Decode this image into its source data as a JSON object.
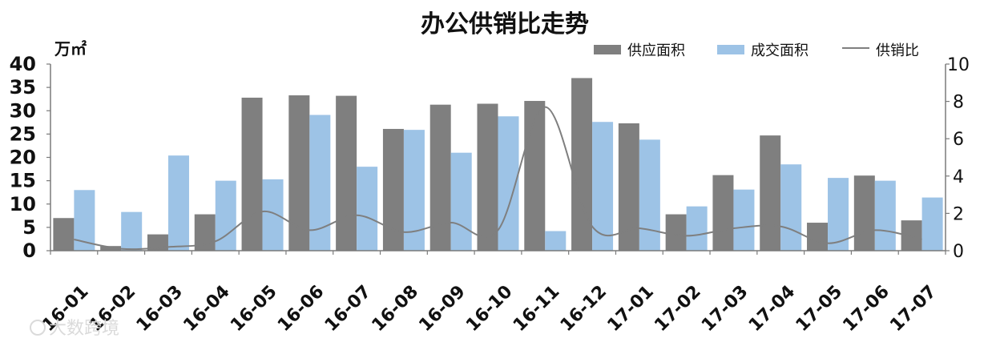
{
  "chart_data": {
    "type": "bar",
    "title": "办公供销比走势",
    "ylabel": "万㎡",
    "ylim": [
      0,
      40
    ],
    "y_ticks": [
      "0",
      "5",
      "10",
      "15",
      "20",
      "25",
      "30",
      "35",
      "40"
    ],
    "y2lim": [
      0,
      10
    ],
    "y2_ticks": [
      "0",
      "2",
      "4",
      "6",
      "8",
      "10"
    ],
    "categories": [
      "16-01",
      "16-02",
      "16-03",
      "16-04",
      "16-05",
      "16-06",
      "16-07",
      "16-08",
      "16-09",
      "16-10",
      "16-11",
      "16-12",
      "17-01",
      "17-02",
      "17-03",
      "17-04",
      "17-05",
      "17-06",
      "17-07"
    ],
    "series": [
      {
        "name": "供应面积",
        "type": "bar",
        "axis": "left",
        "color": "#7f7f7f",
        "values": [
          7.0,
          1.0,
          3.5,
          7.8,
          32.8,
          33.3,
          33.2,
          26.1,
          31.3,
          31.5,
          32.1,
          37.0,
          27.3,
          7.8,
          16.2,
          24.7,
          6.0,
          16.1,
          6.5
        ]
      },
      {
        "name": "成交面积",
        "type": "bar",
        "axis": "left",
        "color": "#9dc3e6",
        "values": [
          13.0,
          8.3,
          20.4,
          15.0,
          15.3,
          29.1,
          18.0,
          25.9,
          21.0,
          28.8,
          4.2,
          27.6,
          23.8,
          9.5,
          13.1,
          18.5,
          15.6,
          15.0,
          11.4
        ]
      },
      {
        "name": "供销比",
        "type": "line",
        "axis": "right",
        "color": "#7f7f7f",
        "values": [
          0.6,
          0.1,
          0.2,
          0.5,
          2.1,
          1.1,
          1.9,
          1.0,
          1.5,
          1.1,
          7.7,
          1.3,
          1.2,
          0.8,
          1.2,
          1.3,
          0.4,
          1.1,
          0.6
        ]
      }
    ],
    "legend_position": "top-right",
    "grid": false
  },
  "watermark": {
    "text": "大数跨境"
  }
}
